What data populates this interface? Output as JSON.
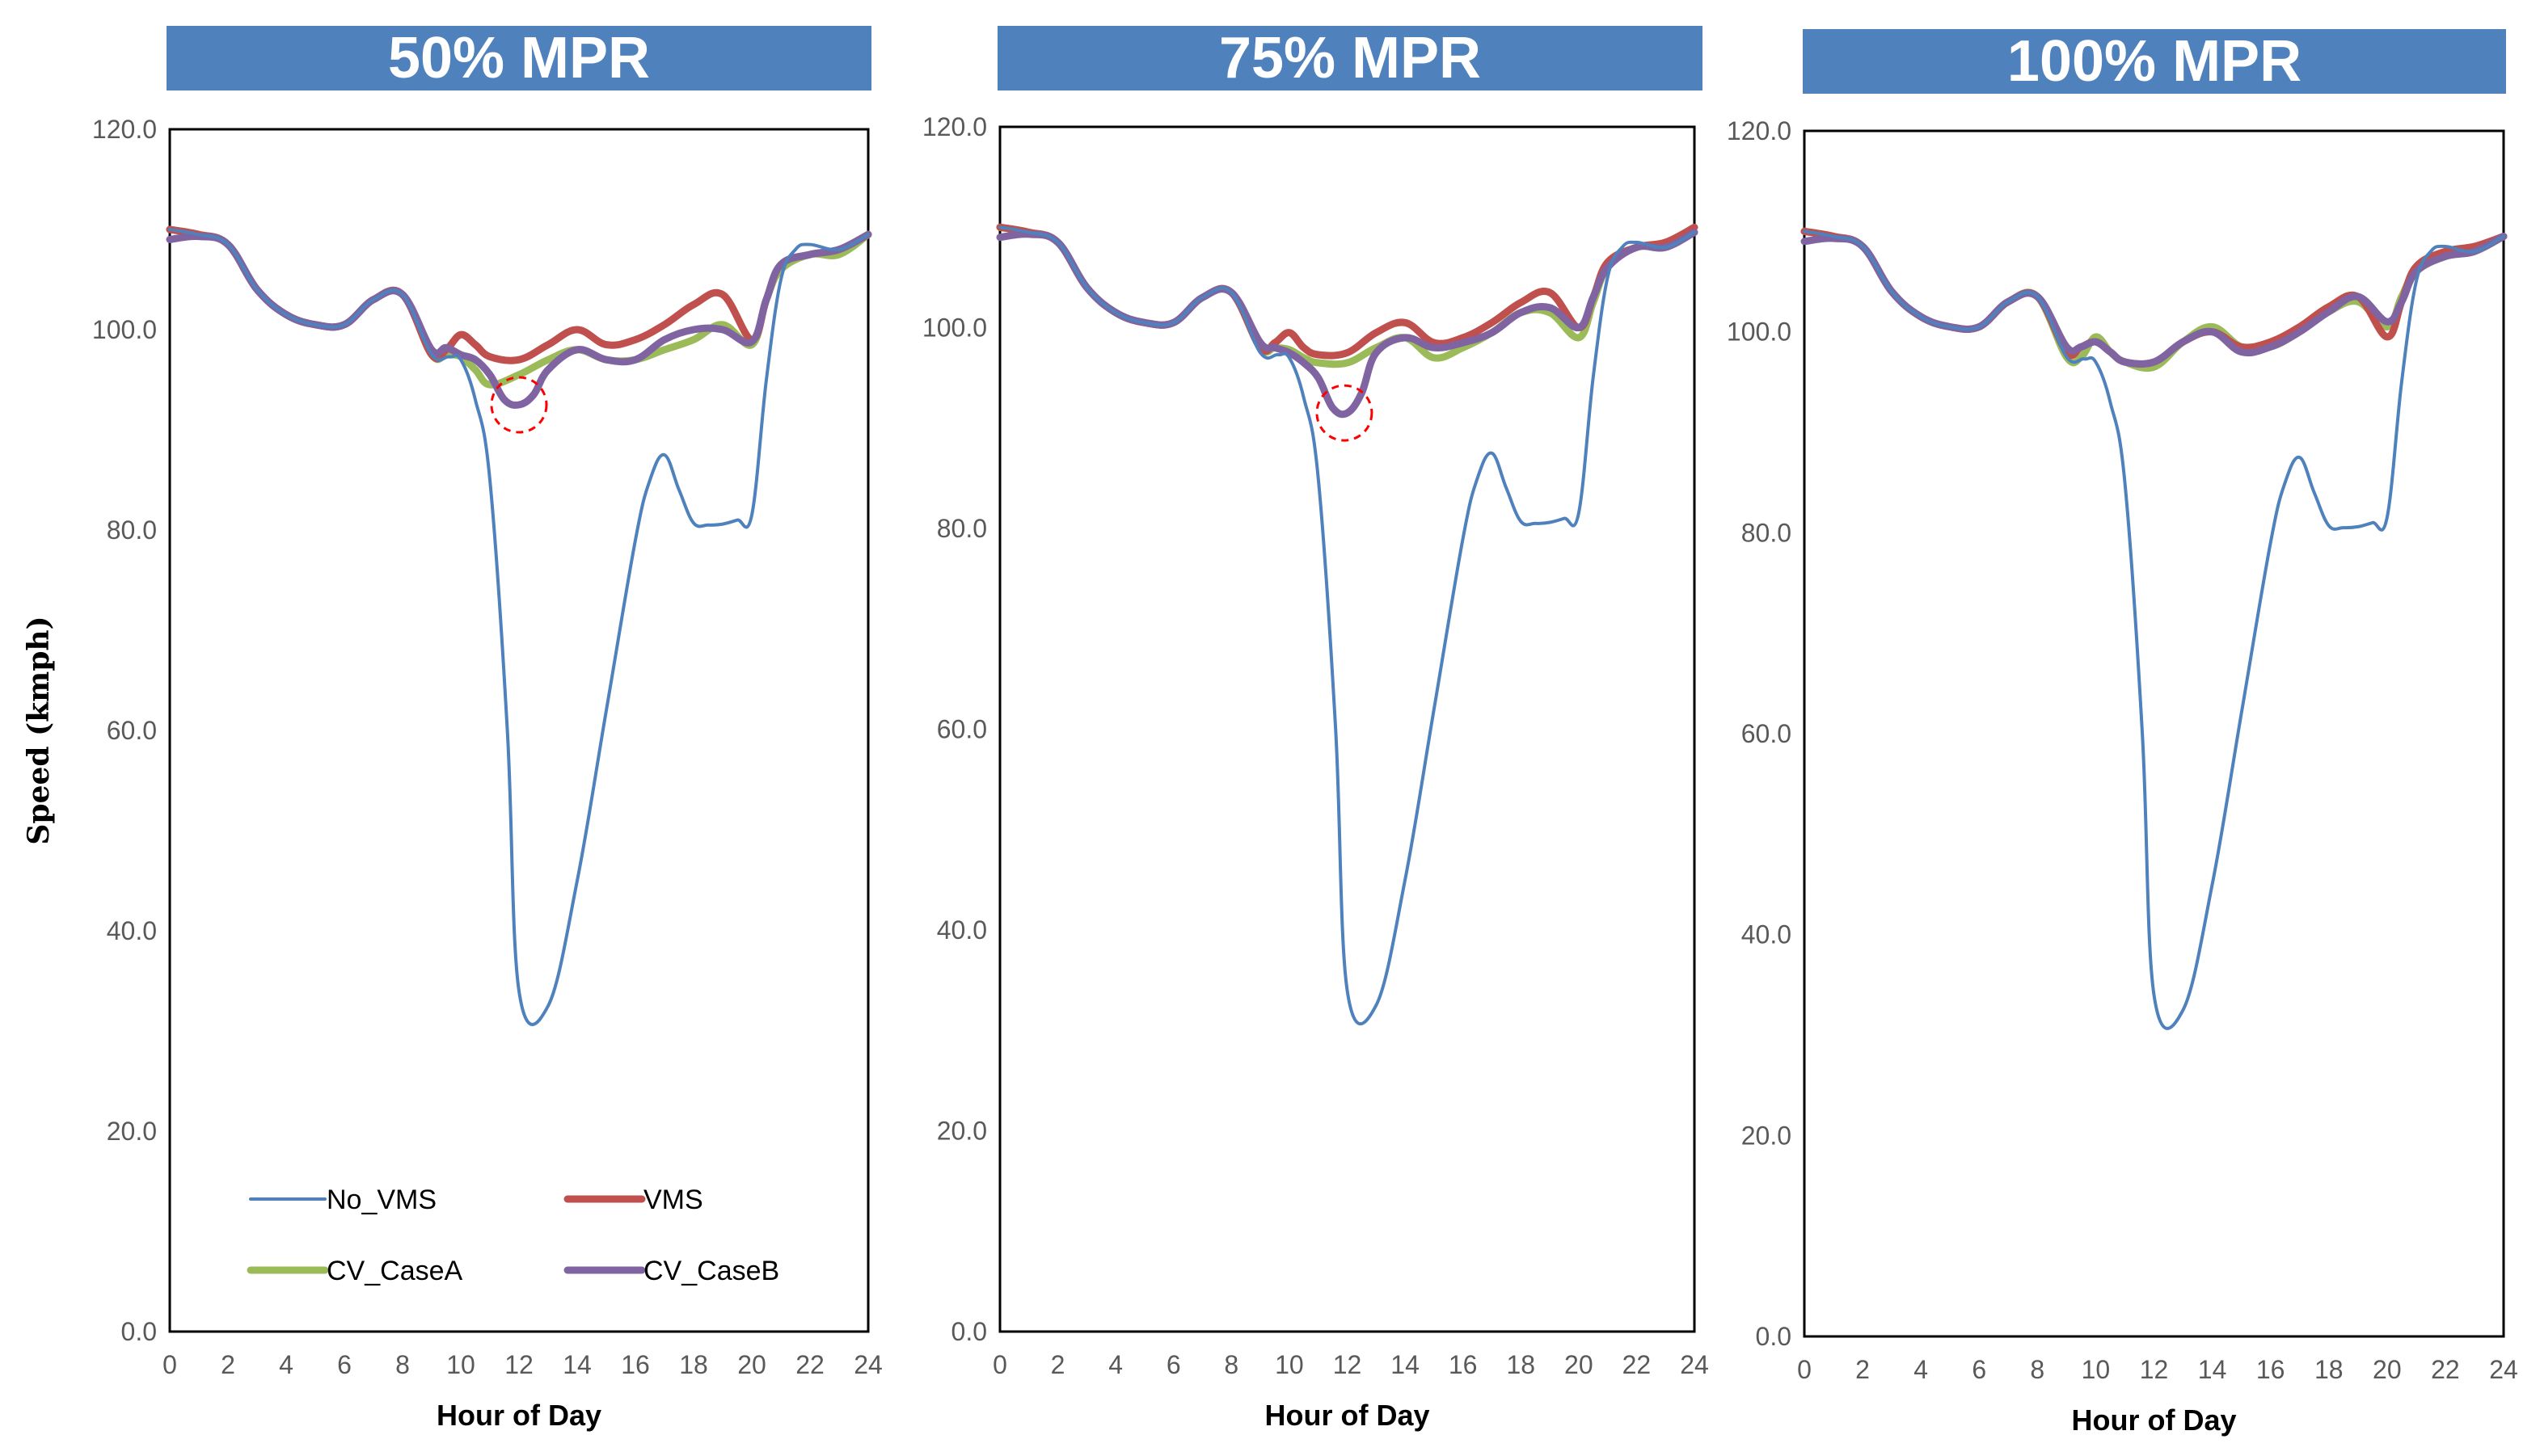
{
  "chart_data": [
    {
      "type": "line",
      "title": "50% MPR",
      "xlabel": "Hour of Day",
      "ylabel": "Speed (kmph)",
      "xlim": [
        0,
        24
      ],
      "ylim": [
        0,
        120
      ],
      "x_ticks": [
        "0",
        "2",
        "4",
        "6",
        "8",
        "10",
        "12",
        "14",
        "16",
        "18",
        "20",
        "22",
        "24"
      ],
      "y_ticks": [
        "0.0",
        "20.0",
        "40.0",
        "60.0",
        "80.0",
        "100.0",
        "120.0"
      ],
      "legend": true,
      "highlight": {
        "x": 12,
        "y": 92.5
      },
      "series": [
        {
          "name": "No_VMS",
          "color": "#4f81bd",
          "x": [
            0,
            1,
            2,
            3,
            4,
            5,
            6,
            7,
            8,
            9,
            9.6,
            10,
            10.5,
            11,
            11.6,
            12,
            13,
            14,
            15,
            16,
            16.5,
            17,
            17.5,
            18,
            18.5,
            19,
            19.5,
            20,
            20.5,
            21,
            21.5,
            22,
            23,
            24
          ],
          "y": [
            110,
            109.5,
            108.5,
            104,
            101.5,
            100.5,
            100.5,
            103,
            103.5,
            97.5,
            97.3,
            97,
            93,
            85,
            60,
            34,
            32.5,
            45,
            62,
            79,
            85,
            87.5,
            84,
            80.7,
            80.5,
            80.6,
            81,
            81.5,
            95,
            105,
            108,
            108.5,
            108,
            109.5
          ]
        },
        {
          "name": "VMS",
          "color": "#c0504d",
          "x": [
            0,
            1,
            2,
            3,
            4,
            5,
            6,
            7,
            8,
            9,
            9.5,
            10,
            10.5,
            11,
            12,
            13,
            14,
            15,
            16,
            17,
            18,
            19,
            20,
            20.5,
            21,
            22,
            23,
            24
          ],
          "y": [
            110,
            109.5,
            108.5,
            104,
            101.5,
            100.5,
            100.5,
            103,
            103.5,
            97.5,
            98,
            99.5,
            98.5,
            97.3,
            97,
            98.5,
            100,
            98.5,
            99,
            100.5,
            102.5,
            103.5,
            99,
            103,
            106.5,
            107.5,
            108,
            109.5
          ]
        },
        {
          "name": "CV_CaseA",
          "color": "#9bbb59",
          "x": [
            0,
            1,
            2,
            3,
            4,
            5,
            6,
            7,
            8,
            9,
            9.5,
            10,
            10.5,
            11,
            12,
            13,
            14,
            15,
            16,
            17,
            18,
            19,
            20,
            20.5,
            21,
            22,
            23,
            24
          ],
          "y": [
            110,
            109.5,
            108.5,
            104,
            101.5,
            100.5,
            100.5,
            103,
            103.5,
            97.5,
            97.5,
            97.3,
            96,
            94.5,
            95.5,
            97,
            98,
            97,
            97,
            98,
            99,
            100.5,
            98.5,
            103,
            106,
            107.5,
            107.5,
            109.5
          ]
        },
        {
          "name": "CV_CaseB",
          "color": "#8064a2",
          "x": [
            0,
            1,
            2,
            3,
            4,
            5,
            6,
            7,
            8,
            9,
            9.5,
            10,
            10.5,
            11,
            11.5,
            12,
            12.5,
            13,
            14,
            15,
            16,
            17,
            18,
            19,
            20,
            20.5,
            21,
            22,
            23,
            24
          ],
          "y": [
            109,
            109.3,
            108.5,
            104,
            101.5,
            100.5,
            100.5,
            103,
            103.5,
            98,
            98.2,
            97.5,
            97,
            95.5,
            93,
            92.5,
            93.5,
            96,
            98,
            97,
            97,
            99,
            100,
            100,
            98.8,
            103,
            106.5,
            107.5,
            108,
            109.5
          ]
        }
      ]
    },
    {
      "type": "line",
      "title": "75% MPR",
      "xlabel": "Hour of Day",
      "ylabel": "",
      "xlim": [
        0,
        24
      ],
      "ylim": [
        0,
        120
      ],
      "x_ticks": [
        "0",
        "2",
        "4",
        "6",
        "8",
        "10",
        "12",
        "14",
        "16",
        "18",
        "20",
        "22",
        "24"
      ],
      "y_ticks": [
        "0.0",
        "20.0",
        "40.0",
        "60.0",
        "80.0",
        "100.0",
        "120.0"
      ],
      "legend": false,
      "highlight": {
        "x": 11.9,
        "y": 91.5
      },
      "series": [
        {
          "name": "No_VMS",
          "color": "#4f81bd",
          "x": [
            0,
            1,
            2,
            3,
            4,
            5,
            6,
            7,
            8,
            9,
            9.6,
            10,
            10.5,
            11,
            11.6,
            12,
            13,
            14,
            15,
            16,
            16.5,
            17,
            17.5,
            18,
            18.5,
            19,
            19.5,
            20,
            20.5,
            21,
            21.5,
            22,
            23,
            24
          ],
          "y": [
            110,
            109.5,
            108.5,
            104,
            101.5,
            100.5,
            100.5,
            103,
            103.5,
            97.5,
            97.3,
            97,
            93,
            85,
            60,
            34,
            32.5,
            45,
            62,
            79,
            85,
            87.5,
            84,
            80.7,
            80.5,
            80.6,
            81,
            81.5,
            95,
            105,
            108,
            108.5,
            108,
            109.5
          ]
        },
        {
          "name": "VMS",
          "color": "#c0504d",
          "x": [
            0,
            1,
            2,
            3,
            4,
            5,
            6,
            7,
            8,
            9,
            9.5,
            10,
            10.5,
            11,
            12,
            13,
            14,
            15,
            16,
            17,
            18,
            19,
            20,
            20.5,
            21,
            22,
            23,
            24
          ],
          "y": [
            110,
            109.5,
            108.5,
            104,
            101.5,
            100.5,
            100.5,
            103,
            103.5,
            98,
            98.5,
            99.5,
            98,
            97.3,
            97.5,
            99.5,
            100.5,
            98.5,
            99,
            100.5,
            102.5,
            103.5,
            100,
            103,
            106.5,
            108,
            108.5,
            110
          ]
        },
        {
          "name": "CV_CaseA",
          "color": "#9bbb59",
          "x": [
            0,
            1,
            2,
            3,
            4,
            5,
            6,
            7,
            8,
            9,
            9.5,
            10,
            10.5,
            11,
            12,
            13,
            14,
            15,
            16,
            17,
            18,
            19,
            20,
            20.5,
            21,
            22,
            23,
            24
          ],
          "y": [
            110,
            109.5,
            108.5,
            104,
            101.5,
            100.5,
            100.5,
            103,
            103.5,
            98,
            98,
            97.8,
            97,
            96.5,
            96.5,
            98,
            99,
            97,
            98,
            99.5,
            101.5,
            101.5,
            99,
            102.5,
            106,
            108,
            108,
            109.5
          ]
        },
        {
          "name": "CV_CaseB",
          "color": "#8064a2",
          "x": [
            0,
            1,
            2,
            3,
            4,
            5,
            6,
            7,
            8,
            9,
            9.5,
            10,
            10.5,
            11,
            11.5,
            12,
            12.5,
            13,
            14,
            15,
            16,
            17,
            18,
            19,
            20,
            20.5,
            21,
            22,
            23,
            24
          ],
          "y": [
            109,
            109.3,
            108.5,
            104,
            101.5,
            100.5,
            100.5,
            103,
            103.5,
            98.5,
            98,
            97.5,
            96.5,
            95,
            92,
            91.5,
            93.5,
            97.5,
            99,
            98,
            98.5,
            99.5,
            101.5,
            102,
            100,
            103,
            106,
            108,
            108,
            109.5
          ]
        }
      ]
    },
    {
      "type": "line",
      "title": "100% MPR",
      "xlabel": "Hour of Day",
      "ylabel": "",
      "xlim": [
        0,
        24
      ],
      "ylim": [
        0,
        120
      ],
      "x_ticks": [
        "0",
        "2",
        "4",
        "6",
        "8",
        "10",
        "12",
        "14",
        "16",
        "18",
        "20",
        "22",
        "24"
      ],
      "y_ticks": [
        "0.0",
        "20.0",
        "40.0",
        "60.0",
        "80.0",
        "100.0",
        "120.0"
      ],
      "legend": false,
      "series": [
        {
          "name": "No_VMS",
          "color": "#4f81bd",
          "x": [
            0,
            1,
            2,
            3,
            4,
            5,
            6,
            7,
            8,
            9,
            9.6,
            10,
            10.5,
            11,
            11.6,
            12,
            13,
            14,
            15,
            16,
            16.5,
            17,
            17.5,
            18,
            18.5,
            19,
            19.5,
            20,
            20.5,
            21,
            21.5,
            22,
            23,
            24
          ],
          "y": [
            110,
            109.5,
            108.5,
            104,
            101.5,
            100.5,
            100.5,
            103,
            103.5,
            97.5,
            97.3,
            97,
            93,
            85,
            60,
            34,
            32.5,
            45,
            62,
            79,
            85,
            87.5,
            84,
            80.7,
            80.5,
            80.6,
            81,
            81.5,
            95,
            105,
            108,
            108.5,
            108,
            109.5
          ]
        },
        {
          "name": "VMS",
          "color": "#c0504d",
          "x": [
            0,
            1,
            2,
            3,
            4,
            5,
            6,
            7,
            8,
            9,
            9.5,
            10,
            10.5,
            11,
            12,
            13,
            14,
            15,
            16,
            17,
            18,
            19,
            20,
            20.5,
            21,
            22,
            23,
            24
          ],
          "y": [
            110,
            109.5,
            108.5,
            104,
            101.5,
            100.5,
            100.5,
            103,
            103.5,
            98,
            98.5,
            99,
            98,
            97,
            97,
            99,
            100,
            98.5,
            99,
            100.5,
            102.5,
            103.5,
            99.5,
            103,
            106.5,
            108,
            108.5,
            109.5
          ]
        },
        {
          "name": "CV_CaseA",
          "color": "#9bbb59",
          "x": [
            0,
            1,
            2,
            3,
            4,
            5,
            6,
            7,
            8,
            9,
            9.5,
            10,
            10.5,
            11,
            12,
            13,
            14,
            15,
            16,
            17,
            18,
            19,
            20,
            20.5,
            21,
            22,
            23,
            24
          ],
          "y": [
            110,
            109.5,
            108.5,
            104,
            101.5,
            100.5,
            100.5,
            103,
            103.5,
            97.5,
            97.5,
            99.5,
            98,
            97,
            96.5,
            99,
            100.5,
            98.5,
            98.5,
            100,
            102,
            103,
            100.5,
            103.5,
            106,
            107.5,
            108,
            109.5
          ]
        },
        {
          "name": "CV_CaseB",
          "color": "#8064a2",
          "x": [
            0,
            1,
            2,
            3,
            4,
            5,
            6,
            7,
            8,
            9,
            9.5,
            10,
            10.5,
            11,
            12,
            13,
            14,
            15,
            16,
            17,
            18,
            19,
            20,
            20.5,
            21,
            22,
            23,
            24
          ],
          "y": [
            109,
            109.3,
            108.5,
            104,
            101.5,
            100.5,
            100.5,
            103,
            103.5,
            98.5,
            98.5,
            99,
            98,
            97,
            97,
            99,
            100,
            98,
            98.5,
            100,
            102,
            103.5,
            101,
            103,
            106,
            107.5,
            108,
            109.5
          ]
        }
      ]
    }
  ]
}
